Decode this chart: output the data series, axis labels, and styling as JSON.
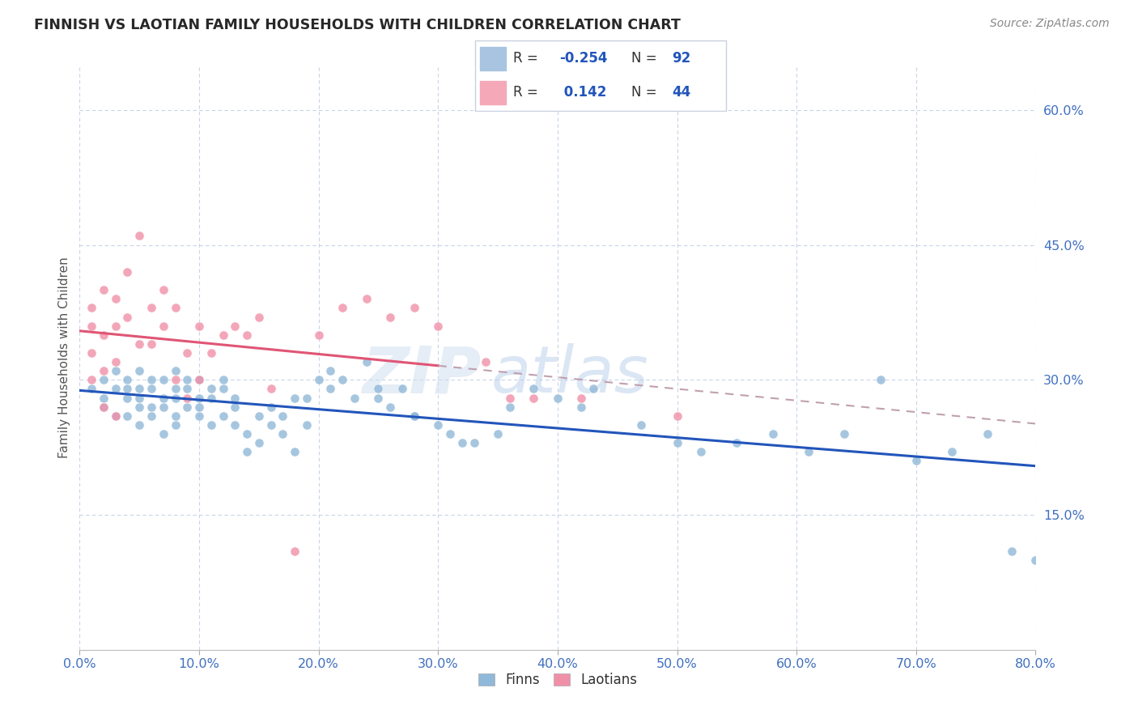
{
  "title": "FINNISH VS LAOTIAN FAMILY HOUSEHOLDS WITH CHILDREN CORRELATION CHART",
  "source": "Source: ZipAtlas.com",
  "xlabel_vals": [
    0,
    10,
    20,
    30,
    40,
    50,
    60,
    70,
    80
  ],
  "ylabel_vals": [
    15,
    30,
    45,
    60
  ],
  "ylabel_label": "Family Households with Children",
  "watermark_zip": "ZIP",
  "watermark_atlas": "atlas",
  "finns_R": -0.254,
  "finns_N": 92,
  "laotians_R": 0.142,
  "laotians_N": 44,
  "blue_legend_color": "#a8c4e0",
  "pink_legend_color": "#f4a8b8",
  "blue_line_color": "#2255bb",
  "pink_line_color": "#e05575",
  "blue_scatter_color": "#90b8d8",
  "pink_scatter_color": "#f090a8",
  "background_color": "#ffffff",
  "grid_color": "#c8d4e8",
  "axis_tick_color": "#4070c0",
  "title_color": "#282828",
  "source_color": "#888888",
  "xlim": [
    0,
    80
  ],
  "ylim": [
    0,
    65
  ],
  "finns_x": [
    1,
    2,
    2,
    2,
    3,
    3,
    3,
    4,
    4,
    4,
    4,
    5,
    5,
    5,
    5,
    5,
    6,
    6,
    6,
    6,
    7,
    7,
    7,
    7,
    8,
    8,
    8,
    8,
    8,
    9,
    9,
    9,
    10,
    10,
    10,
    10,
    11,
    11,
    11,
    12,
    12,
    12,
    13,
    13,
    13,
    14,
    14,
    15,
    15,
    16,
    16,
    17,
    17,
    18,
    18,
    19,
    19,
    20,
    21,
    21,
    22,
    23,
    24,
    25,
    25,
    26,
    27,
    28,
    28,
    30,
    31,
    32,
    33,
    35,
    36,
    38,
    40,
    42,
    43,
    47,
    50,
    52,
    55,
    58,
    61,
    64,
    67,
    70,
    73,
    76,
    78,
    80
  ],
  "finns_y": [
    29,
    28,
    30,
    27,
    29,
    31,
    26,
    28,
    30,
    26,
    29,
    27,
    29,
    31,
    25,
    28,
    30,
    29,
    27,
    26,
    28,
    30,
    24,
    27,
    29,
    31,
    25,
    28,
    26,
    30,
    27,
    29,
    28,
    26,
    30,
    27,
    29,
    25,
    28,
    26,
    29,
    30,
    25,
    28,
    27,
    22,
    24,
    26,
    23,
    25,
    27,
    24,
    26,
    28,
    22,
    25,
    28,
    30,
    29,
    31,
    30,
    28,
    32,
    29,
    28,
    27,
    29,
    26,
    26,
    25,
    24,
    23,
    23,
    24,
    27,
    29,
    28,
    27,
    29,
    25,
    23,
    22,
    23,
    24,
    22,
    24,
    30,
    21,
    22,
    24,
    11,
    10
  ],
  "laotians_x": [
    1,
    1,
    1,
    1,
    2,
    2,
    2,
    2,
    3,
    3,
    3,
    3,
    4,
    4,
    5,
    5,
    6,
    6,
    7,
    7,
    8,
    8,
    9,
    9,
    10,
    10,
    11,
    12,
    13,
    14,
    15,
    16,
    18,
    20,
    22,
    24,
    26,
    28,
    30,
    34,
    36,
    38,
    42,
    50
  ],
  "laotians_y": [
    30,
    33,
    36,
    38,
    27,
    31,
    35,
    40,
    32,
    36,
    26,
    39,
    37,
    42,
    34,
    46,
    34,
    38,
    36,
    40,
    30,
    38,
    28,
    33,
    30,
    36,
    33,
    35,
    36,
    35,
    37,
    29,
    11,
    35,
    38,
    39,
    37,
    38,
    36,
    32,
    28,
    28,
    28,
    26
  ]
}
